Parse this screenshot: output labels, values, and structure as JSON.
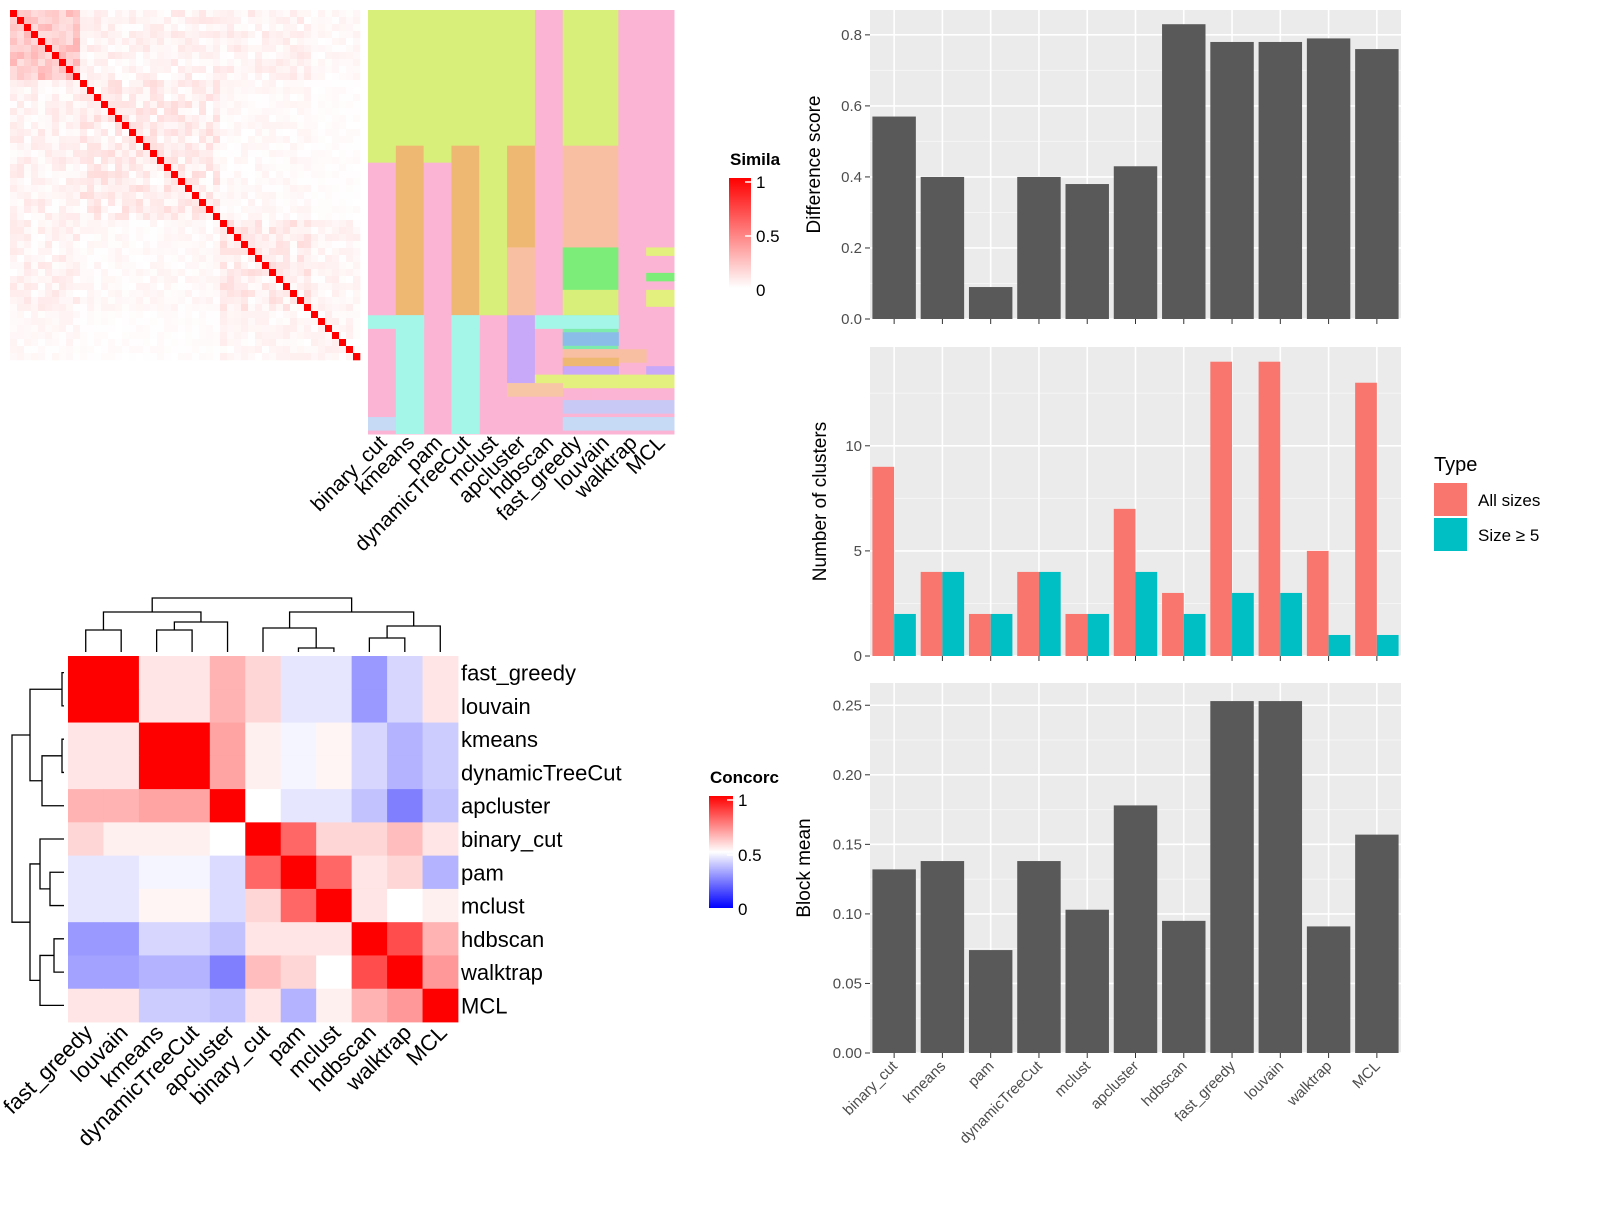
{
  "colors": {
    "similarity_high": "#ff0000",
    "concordance_high": "#ff0000",
    "concordance_mid": "#ffffff",
    "concordance_low": "#0000ff",
    "bar_fill": "#595959",
    "panel_bg": "#ebebeb",
    "all_sizes": "#f8766d",
    "size_ge5": "#00bfc4"
  },
  "similarity_legend": {
    "title": "Simila",
    "ticks": [
      "1",
      "0.5",
      "0"
    ]
  },
  "concordance_legend": {
    "title": "Concorc",
    "ticks": [
      "1",
      "0.5",
      "0"
    ]
  },
  "class_matrix": {
    "columns": [
      "binary_cut",
      "kmeans",
      "pam",
      "dynamicTreeCut",
      "mclust",
      "apcluster",
      "hdbscan",
      "fast_greedy",
      "louvain",
      "walktrap",
      "MCL"
    ]
  },
  "concordance": {
    "methods": [
      "fast_greedy",
      "louvain",
      "kmeans",
      "dynamicTreeCut",
      "apcluster",
      "binary_cut",
      "pam",
      "mclust",
      "hdbscan",
      "walktrap",
      "MCL"
    ],
    "values": [
      [
        1.0,
        1.0,
        0.55,
        0.55,
        0.65,
        0.58,
        0.45,
        0.45,
        0.3,
        0.42,
        0.55
      ],
      [
        1.0,
        1.0,
        0.55,
        0.55,
        0.65,
        0.58,
        0.45,
        0.45,
        0.3,
        0.42,
        0.55
      ],
      [
        0.55,
        0.55,
        1.0,
        1.0,
        0.68,
        0.53,
        0.48,
        0.52,
        0.42,
        0.35,
        0.4
      ],
      [
        0.55,
        0.55,
        1.0,
        1.0,
        0.68,
        0.53,
        0.48,
        0.52,
        0.42,
        0.35,
        0.4
      ],
      [
        0.65,
        0.65,
        0.68,
        0.68,
        1.0,
        0.5,
        0.45,
        0.45,
        0.38,
        0.25,
        0.38
      ],
      [
        0.58,
        0.53,
        0.53,
        0.53,
        0.5,
        1.0,
        0.8,
        0.58,
        0.58,
        0.63,
        0.55
      ],
      [
        0.45,
        0.45,
        0.48,
        0.48,
        0.43,
        0.8,
        1.0,
        0.8,
        0.55,
        0.58,
        0.35
      ],
      [
        0.45,
        0.45,
        0.52,
        0.52,
        0.43,
        0.58,
        0.8,
        1.0,
        0.55,
        0.5,
        0.53
      ],
      [
        0.3,
        0.3,
        0.42,
        0.42,
        0.38,
        0.55,
        0.55,
        0.55,
        1.0,
        0.85,
        0.65
      ],
      [
        0.32,
        0.32,
        0.35,
        0.35,
        0.25,
        0.63,
        0.58,
        0.5,
        0.85,
        1.0,
        0.7
      ],
      [
        0.55,
        0.55,
        0.4,
        0.4,
        0.38,
        0.55,
        0.35,
        0.53,
        0.65,
        0.7,
        1.0
      ]
    ]
  },
  "chart_data": [
    {
      "type": "bar",
      "categories": [
        "binary_cut",
        "kmeans",
        "pam",
        "dynamicTreeCut",
        "mclust",
        "apcluster",
        "hdbscan",
        "fast_greedy",
        "louvain",
        "walktrap",
        "MCL"
      ],
      "values": [
        0.57,
        0.4,
        0.09,
        0.4,
        0.38,
        0.43,
        0.83,
        0.78,
        0.78,
        0.79,
        0.76
      ],
      "title": "",
      "xlabel": "",
      "ylabel": "Difference score",
      "ylim": [
        0,
        0.87
      ],
      "yticks": [
        "0.0",
        "0.2",
        "0.4",
        "0.6",
        "0.8"
      ]
    },
    {
      "type": "bar",
      "categories": [
        "binary_cut",
        "kmeans",
        "pam",
        "dynamicTreeCut",
        "mclust",
        "apcluster",
        "hdbscan",
        "fast_greedy",
        "louvain",
        "walktrap",
        "MCL"
      ],
      "series": [
        {
          "name": "All sizes",
          "values": [
            9,
            4,
            2,
            4,
            2,
            7,
            3,
            14,
            14,
            5,
            13
          ]
        },
        {
          "name": "Size ≥ 5",
          "values": [
            2,
            4,
            2,
            4,
            2,
            4,
            2,
            3,
            3,
            1,
            1
          ]
        }
      ],
      "title": "",
      "xlabel": "",
      "ylabel": "Number of clusters",
      "ylim": [
        0,
        14.7
      ],
      "yticks": [
        "0",
        "5",
        "10"
      ],
      "legend": {
        "title": "Type",
        "position": "right"
      }
    },
    {
      "type": "bar",
      "categories": [
        "binary_cut",
        "kmeans",
        "pam",
        "dynamicTreeCut",
        "mclust",
        "apcluster",
        "hdbscan",
        "fast_greedy",
        "louvain",
        "walktrap",
        "MCL"
      ],
      "values": [
        0.132,
        0.138,
        0.074,
        0.138,
        0.103,
        0.178,
        0.095,
        0.253,
        0.253,
        0.091,
        0.157
      ],
      "title": "",
      "xlabel": "",
      "ylabel": "Block mean",
      "ylim": [
        0,
        0.266
      ],
      "yticks": [
        "0.00",
        "0.05",
        "0.10",
        "0.15",
        "0.20",
        "0.25"
      ]
    }
  ]
}
